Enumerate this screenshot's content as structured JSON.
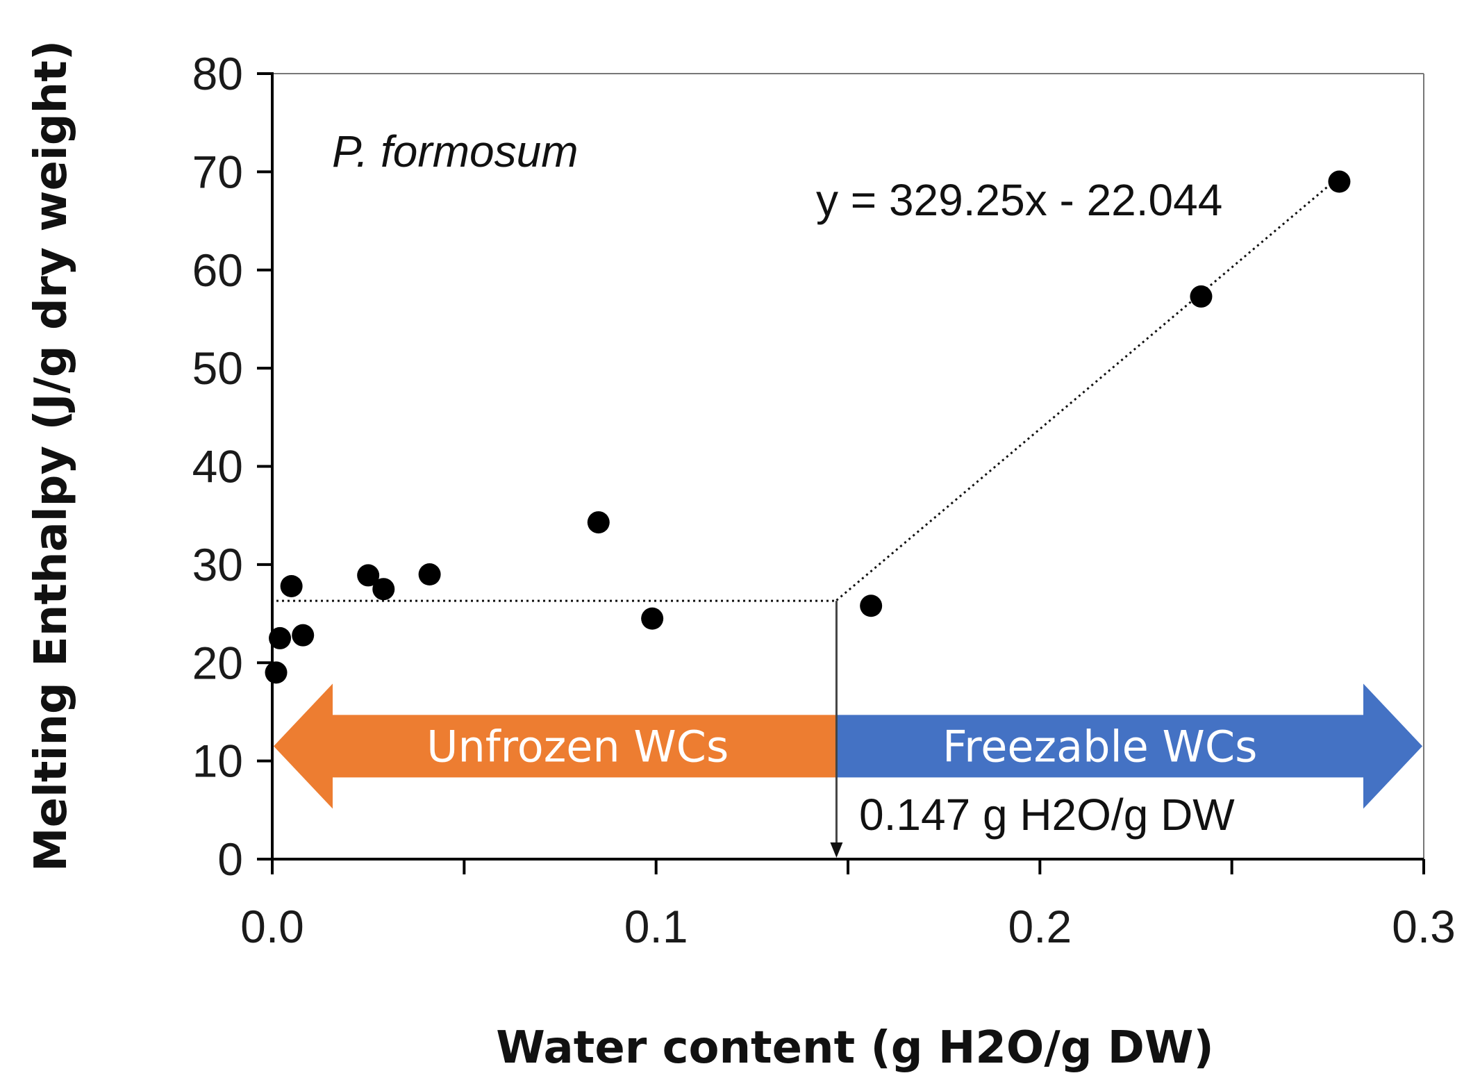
{
  "colors": {
    "unfrozen": "#ED7D31",
    "freezable": "#4472C4",
    "point": "#000000",
    "axis": "#000000"
  },
  "chart_data": {
    "type": "scatter",
    "title": "",
    "xlabel": "Water content (g H2O/g DW)",
    "ylabel": "Melting Enthalpy (J/g dry weight)",
    "xlim": [
      0.0,
      0.3
    ],
    "ylim": [
      0,
      80
    ],
    "xticks": [
      0.0,
      0.1,
      0.2,
      0.3
    ],
    "xtick_labels": [
      "0.0",
      "0.1",
      "0.2",
      "0.3"
    ],
    "yticks": [
      0,
      10,
      20,
      30,
      40,
      50,
      60,
      70,
      80
    ],
    "ytick_labels": [
      "0",
      "10",
      "20",
      "30",
      "40",
      "50",
      "60",
      "70",
      "80"
    ],
    "series": [
      {
        "name": "P. formosum",
        "x": [
          0.001,
          0.002,
          0.005,
          0.008,
          0.025,
          0.029,
          0.041,
          0.085,
          0.099,
          0.156,
          0.242,
          0.278
        ],
        "y": [
          19.0,
          22.5,
          27.8,
          22.8,
          28.9,
          27.5,
          29.0,
          34.3,
          24.5,
          25.8,
          57.3,
          69.0
        ]
      }
    ],
    "species_label": "P. formosum",
    "regression": {
      "equation": "y = 329.25x - 22.044",
      "slope": 329.25,
      "intercept": -22.044,
      "x_range": [
        0.147,
        0.278
      ]
    },
    "plateau": {
      "y": 26.3,
      "x_range": [
        0.0,
        0.147
      ]
    },
    "threshold": {
      "x": 0.147,
      "label": "0.147 g H2O/g DW"
    },
    "regions": [
      {
        "label": "Unfrozen WCs",
        "x_range": [
          0.0,
          0.147
        ],
        "y_center": 11.5,
        "direction": "left"
      },
      {
        "label": "Freezable WCs",
        "x_range": [
          0.147,
          0.3
        ],
        "y_center": 11.5,
        "direction": "right"
      }
    ]
  }
}
